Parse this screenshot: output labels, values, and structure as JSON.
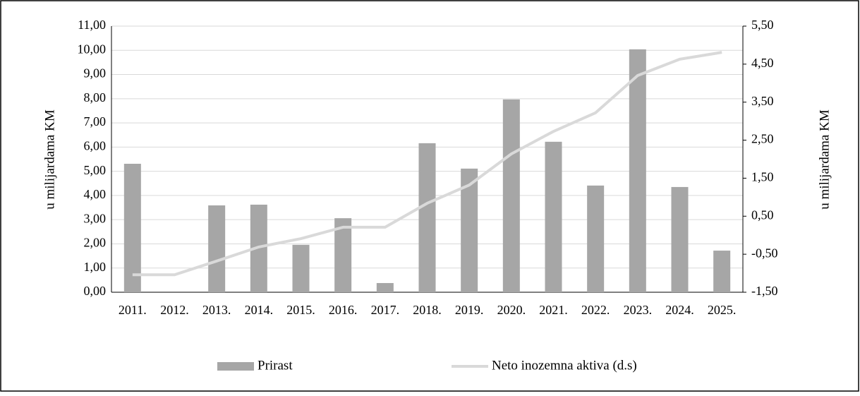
{
  "chart_data": {
    "type": "bar_line",
    "categories": [
      "2011.",
      "2012.",
      "2013.",
      "2014.",
      "2015.",
      "2016.",
      "2017.",
      "2018.",
      "2019.",
      "2020.",
      "2021.",
      "2022.",
      "2023.",
      "2024.",
      "2025."
    ],
    "series": [
      {
        "name": "Prirast",
        "type": "bar",
        "color": "#a6a6a6",
        "values": [
          5.31,
          0,
          3.59,
          3.62,
          1.96,
          3.06,
          0.38,
          6.16,
          5.11,
          7.97,
          6.22,
          4.41,
          10.04,
          4.35,
          1.72
        ]
      },
      {
        "name": "Neto inozemna aktiva (d.s)",
        "type": "line",
        "axis": "y2",
        "color": "#d9d9d9",
        "values": [
          -1.04,
          -1.04,
          -0.68,
          -0.31,
          -0.09,
          0.21,
          0.21,
          0.84,
          1.32,
          2.14,
          2.73,
          3.22,
          4.2,
          4.63,
          4.81
        ]
      }
    ],
    "ylabel": "u milijardama  KM",
    "y2label": "u milijardama KM",
    "ylim": [
      0,
      11
    ],
    "yticks": [
      {
        "value": 0,
        "label": "0,00"
      },
      {
        "value": 1,
        "label": "1,00"
      },
      {
        "value": 2,
        "label": "2,00"
      },
      {
        "value": 3,
        "label": "3,00"
      },
      {
        "value": 4,
        "label": "4,00"
      },
      {
        "value": 5,
        "label": "5,00"
      },
      {
        "value": 6,
        "label": "6,00"
      },
      {
        "value": 7,
        "label": "7,00"
      },
      {
        "value": 8,
        "label": "8,00"
      },
      {
        "value": 9,
        "label": "9,00"
      },
      {
        "value": 10,
        "label": "10,00"
      },
      {
        "value": 11,
        "label": "11,00"
      }
    ],
    "y2lim": [
      -1.5,
      5.5
    ],
    "y2ticks": [
      {
        "value": -1.5,
        "label": "-1,50"
      },
      {
        "value": -0.5,
        "label": "-0,50"
      },
      {
        "value": 0.5,
        "label": "0,50"
      },
      {
        "value": 1.5,
        "label": "1,50"
      },
      {
        "value": 2.5,
        "label": "2,50"
      },
      {
        "value": 3.5,
        "label": "3,50"
      },
      {
        "value": 4.5,
        "label": "4,50"
      },
      {
        "value": 5.5,
        "label": "5,50"
      }
    ],
    "grid": true,
    "legend": "bottom"
  }
}
